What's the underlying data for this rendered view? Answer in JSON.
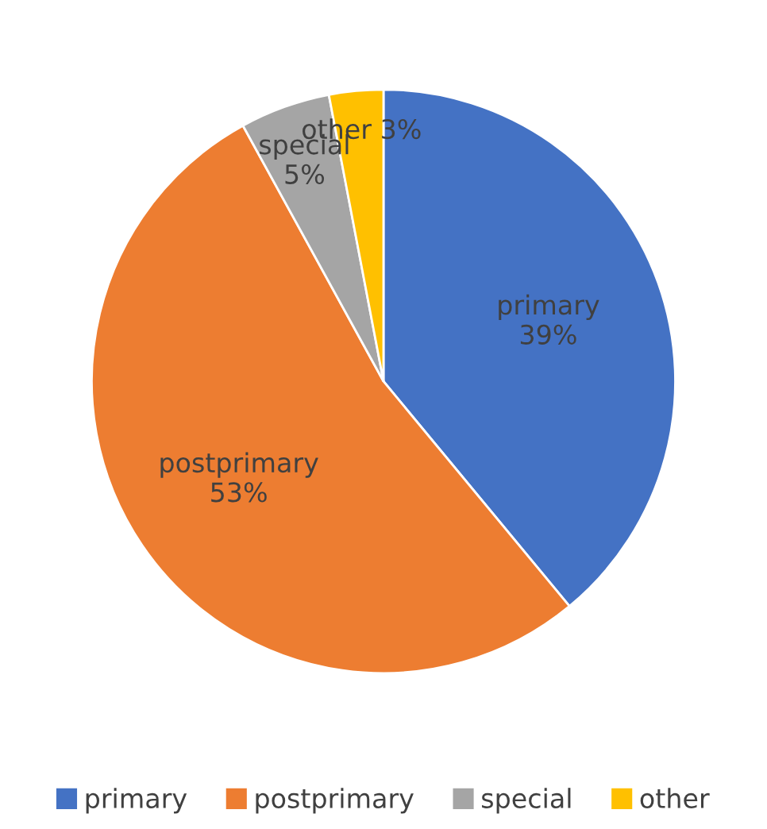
{
  "chart_data": {
    "type": "pie",
    "categories": [
      "primary",
      "postprimary",
      "special",
      "other"
    ],
    "values": [
      39,
      53,
      5,
      3
    ],
    "value_labels": [
      "39%",
      "53%",
      "5%",
      "3%"
    ],
    "colors": [
      "#4472c4",
      "#ed7d31",
      "#a5a5a5",
      "#ffc000"
    ],
    "legend": "bottom"
  }
}
